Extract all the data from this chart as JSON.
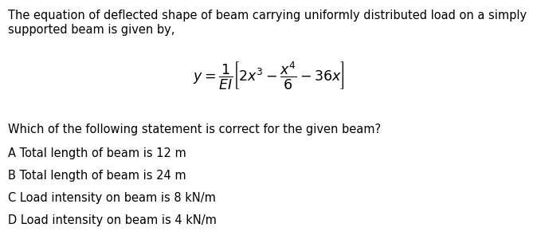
{
  "background_color": "#ffffff",
  "text_color": "#000000",
  "intro_line1": "The equation of deflected shape of beam carrying uniformly distributed load on a simply",
  "intro_line2": "supported beam is given by,",
  "equation": "$y = \\dfrac{1}{EI}\\left[2x^3 - \\dfrac{x^4}{6} - 36x\\right]$",
  "question": "Which of the following statement is correct for the given beam?",
  "options": [
    "A Total length of beam is 12 m",
    "B Total length of beam is 24 m",
    "C Load intensity on beam is 8 kN/m",
    "D Load intensity on beam is 4 kN/m"
  ],
  "font_size_text": 10.5,
  "font_size_eq": 12.5,
  "fig_width": 6.74,
  "fig_height": 3.15,
  "dpi": 100
}
